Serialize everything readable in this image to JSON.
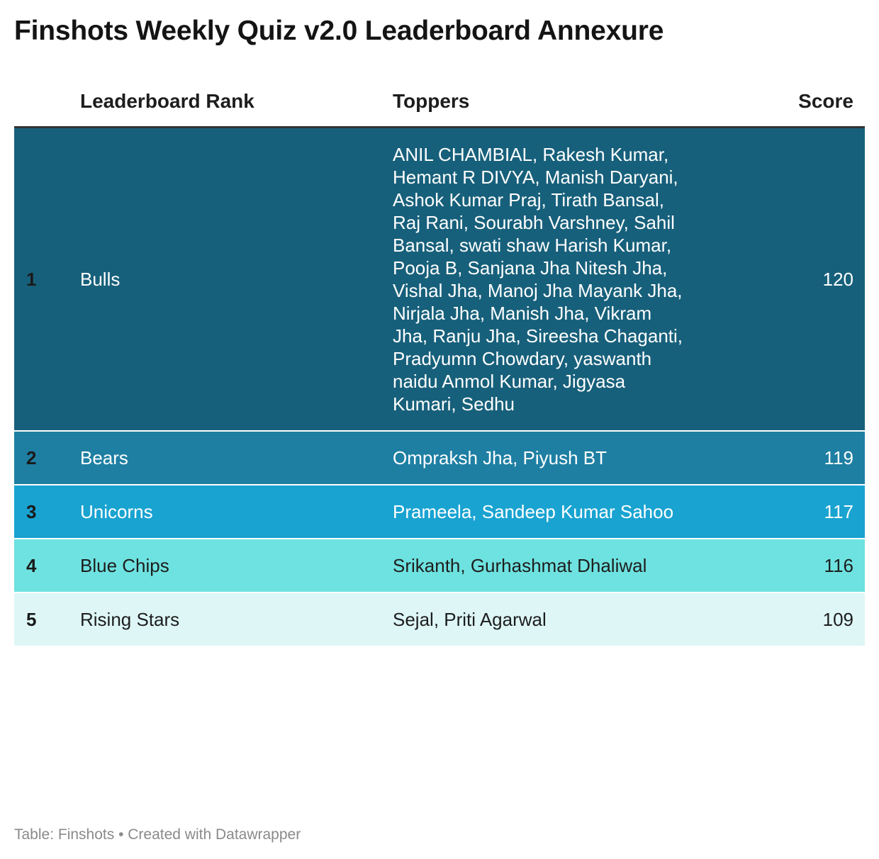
{
  "title": "Finshots Weekly Quiz v2.0 Leaderboard Annexure",
  "chart_data": {
    "type": "table",
    "title": "Finshots Weekly Quiz v2.0 Leaderboard Annexure",
    "columns": [
      "",
      "Leaderboard Rank",
      "Toppers",
      "Score"
    ],
    "rows": [
      {
        "num": "1",
        "team": "Bulls",
        "toppers": "ANIL CHAMBIAL, Rakesh Kumar, Hemant R DIVYA, Manish Daryani, Ashok Kumar Praj, Tirath Bansal, Raj Rani, Sourabh Varshney, Sahil Bansal, swati shaw Harish Kumar, Pooja B, Sanjana Jha Nitesh Jha, Vishal Jha, Manoj Jha Mayank Jha, Nirjala Jha, Manish Jha, Vikram Jha, Ranju Jha, Sireesha Chaganti, Pradyumn Chowdary, yaswanth naidu Anmol Kumar, Jigyasa Kumari, Sedhu",
        "score": 120
      },
      {
        "num": "2",
        "team": "Bears",
        "toppers": "Ompraksh Jha, Piyush BT",
        "score": 119
      },
      {
        "num": "3",
        "team": "Unicorns",
        "toppers": "Prameela, Sandeep Kumar Sahoo",
        "score": 117
      },
      {
        "num": "4",
        "team": "Blue Chips",
        "toppers": "Srikanth, Gurhashmat Dhaliwal",
        "score": 116
      },
      {
        "num": "5",
        "team": "Rising Stars",
        "toppers": "Sejal, Priti Agarwal",
        "score": 109
      }
    ],
    "row_colors": [
      {
        "background": "#17607b",
        "text": "#ffffff"
      },
      {
        "background": "#1e7fa3",
        "text": "#ffffff"
      },
      {
        "background": "#19a3d1",
        "text": "#ffffff"
      },
      {
        "background": "#6ee2e0",
        "text": "#1d1d1d"
      },
      {
        "background": "#def6f6",
        "text": "#1d1d1d"
      }
    ]
  },
  "footer": "Table: Finshots • Created with Datawrapper"
}
